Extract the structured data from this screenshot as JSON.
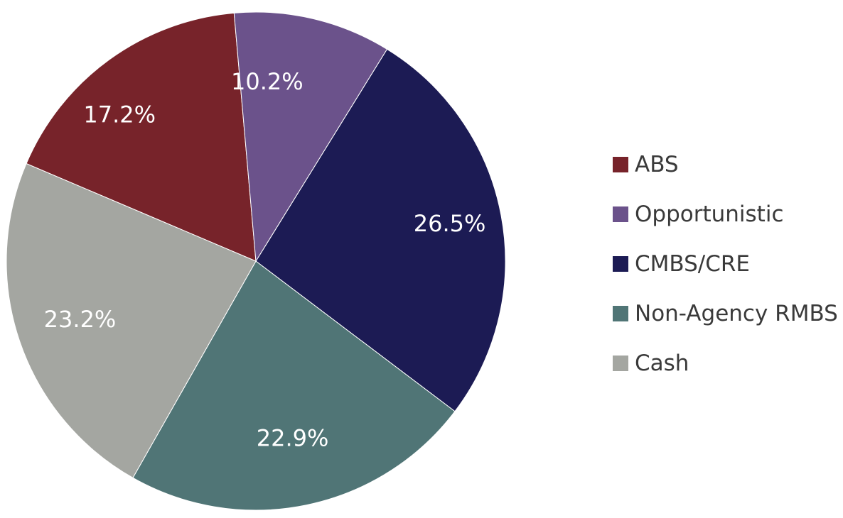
{
  "chart_data": {
    "type": "pie",
    "title": "",
    "slices": [
      {
        "name": "CMBS/CRE",
        "value": 26.5,
        "label": "26.5%",
        "color": "#1c1b54"
      },
      {
        "name": "Non-Agency RMBS",
        "value": 22.9,
        "label": "22.9%",
        "color": "#507576"
      },
      {
        "name": "Cash",
        "value": 23.2,
        "label": "23.2%",
        "color": "#a4a6a1"
      },
      {
        "name": "ABS",
        "value": 17.2,
        "label": "17.2%",
        "color": "#77232a"
      },
      {
        "name": "Opportunistic",
        "value": 10.2,
        "label": "10.2%",
        "color": "#6b528b"
      }
    ],
    "legend": {
      "placement": "right",
      "order": [
        "ABS",
        "Opportunistic",
        "CMBS/CRE",
        "Non-Agency RMBS",
        "Cash"
      ]
    }
  }
}
